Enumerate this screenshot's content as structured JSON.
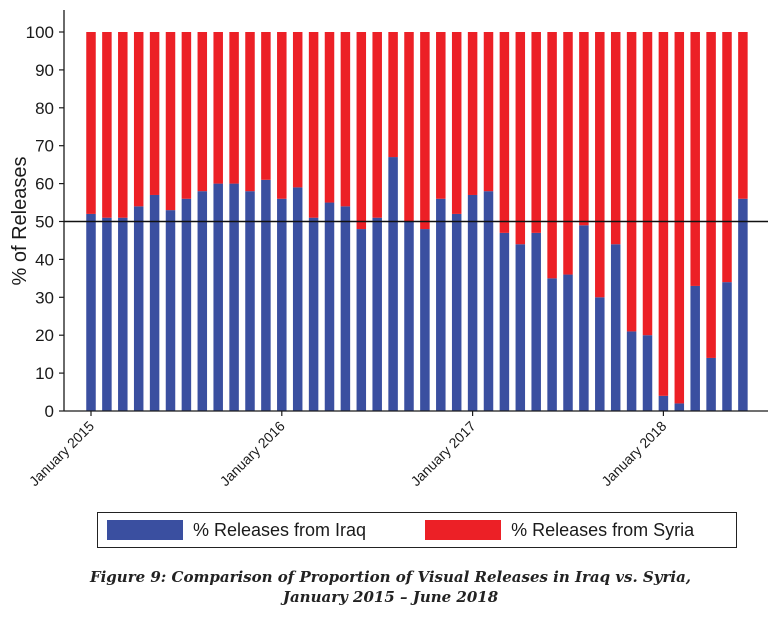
{
  "chart_data": {
    "type": "bar",
    "stacked": true,
    "ylabel": "% of Releases",
    "ylim": [
      0,
      100
    ],
    "yticks": [
      0,
      10,
      20,
      30,
      40,
      50,
      60,
      70,
      80,
      90,
      100
    ],
    "reference_line": 50,
    "x_tick_labels": [
      {
        "label": "January 2015",
        "index": 0
      },
      {
        "label": "January 2016",
        "index": 12
      },
      {
        "label": "January 2017",
        "index": 24
      },
      {
        "label": "January 2018",
        "index": 36
      }
    ],
    "categories": [
      "2015-01",
      "2015-02",
      "2015-03",
      "2015-04",
      "2015-05",
      "2015-06",
      "2015-07",
      "2015-08",
      "2015-09",
      "2015-10",
      "2015-11",
      "2015-12",
      "2016-01",
      "2016-02",
      "2016-03",
      "2016-04",
      "2016-05",
      "2016-06",
      "2016-07",
      "2016-08",
      "2016-09",
      "2016-10",
      "2016-11",
      "2016-12",
      "2017-01",
      "2017-02",
      "2017-03",
      "2017-04",
      "2017-05",
      "2017-06",
      "2017-07",
      "2017-08",
      "2017-09",
      "2017-10",
      "2017-11",
      "2017-12",
      "2018-01",
      "2018-02",
      "2018-03",
      "2018-04",
      "2018-05",
      "2018-06"
    ],
    "series": [
      {
        "name": "% Releases from Iraq",
        "color": "#3a4fa0",
        "values": [
          52,
          51,
          51,
          54,
          57,
          53,
          56,
          58,
          60,
          60,
          58,
          61,
          56,
          59,
          51,
          55,
          54,
          48,
          51,
          67,
          50,
          48,
          56,
          52,
          57,
          58,
          47,
          44,
          47,
          35,
          36,
          49,
          30,
          44,
          21,
          20,
          4,
          2,
          33,
          14,
          34,
          56
        ]
      },
      {
        "name": "% Releases from Syria",
        "color": "#ec2026",
        "values": [
          48,
          49,
          49,
          46,
          43,
          47,
          44,
          42,
          40,
          40,
          42,
          39,
          44,
          41,
          49,
          45,
          46,
          52,
          49,
          33,
          50,
          52,
          44,
          48,
          43,
          42,
          53,
          56,
          53,
          65,
          64,
          51,
          70,
          56,
          79,
          80,
          96,
          98,
          67,
          86,
          66,
          44
        ]
      }
    ]
  },
  "legend": {
    "iraq_label": "% Releases from Iraq",
    "syria_label": "% Releases from Syria"
  },
  "caption": {
    "line1": "Figure 9: Comparison of Proportion of Visual Releases in Iraq vs. Syria,",
    "line2": "January 2015 – June 2018"
  },
  "colors": {
    "iraq": "#3a4fa0",
    "syria": "#ec2026",
    "axis": "#1a1a1a"
  }
}
